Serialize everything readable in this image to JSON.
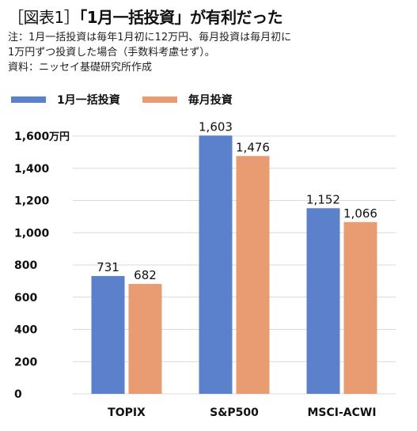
{
  "header": {
    "title_prefix": "［図表1］",
    "title_main": "「1月一括投資」が有利だった",
    "note_line1": "注：1月一括投資は毎年1月初に12万円、毎月投資は毎月初に",
    "note_line2": "1万円ずつ投資した場合（手数料考慮せず）。",
    "source": "資料：ニッセイ基礎研究所作成"
  },
  "colors": {
    "lump_sum": "#5b80cc",
    "monthly": "#e99b72",
    "grid": "#d9d9d9"
  },
  "chart_data": {
    "type": "bar",
    "categories": [
      "TOPIX",
      "S&P500",
      "MSCI-ACWI"
    ],
    "series": [
      {
        "name": "1月一括投資",
        "values": [
          731,
          1603,
          1152
        ],
        "labels": [
          "731",
          "1,603",
          "1,152"
        ]
      },
      {
        "name": "毎月投資",
        "values": [
          682,
          1476,
          1066
        ],
        "labels": [
          "682",
          "1,476",
          "1,066"
        ]
      }
    ],
    "yticks": [
      "0",
      "200",
      "400",
      "600",
      "800",
      "1,000",
      "1,200",
      "1,400",
      "1,600"
    ],
    "yunit": "万円",
    "ylim": [
      0,
      1600
    ],
    "grid": true,
    "legend_position": "top-left"
  }
}
